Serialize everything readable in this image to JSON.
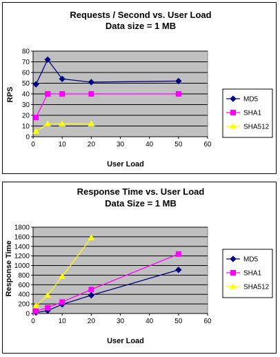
{
  "chart_data": [
    {
      "type": "line",
      "title": "Requests / Second  vs.  User Load",
      "subtitle": "Data size = 1 MB",
      "xlabel": "User Load",
      "ylabel": "RPS",
      "xlim": [
        0,
        60
      ],
      "ylim": [
        0,
        80
      ],
      "xticks": [
        0,
        10,
        20,
        30,
        40,
        50,
        60
      ],
      "yticks": [
        0,
        10,
        20,
        30,
        40,
        50,
        60,
        70,
        80
      ],
      "grid": true,
      "legend_position": "right",
      "plot_background": "#c0c0c0",
      "series": [
        {
          "name": "MD5",
          "color": "#000080",
          "marker": "diamond",
          "x": [
            1,
            5,
            10,
            20,
            50
          ],
          "y": [
            49,
            72,
            54,
            51,
            52
          ]
        },
        {
          "name": "SHA1",
          "color": "#ff00ff",
          "marker": "square",
          "x": [
            1,
            5,
            10,
            20,
            50
          ],
          "y": [
            18,
            40,
            40,
            40,
            40
          ]
        },
        {
          "name": "SHA512",
          "color": "#ffff00",
          "marker": "triangle",
          "x": [
            1,
            5,
            10,
            20
          ],
          "y": [
            5,
            12,
            12,
            12
          ]
        }
      ]
    },
    {
      "type": "line",
      "title": "Response Time  vs.  User Load",
      "subtitle": "Data Size = 1 MB",
      "xlabel": "User Load",
      "ylabel": "Response Time",
      "xlim": [
        0,
        60
      ],
      "ylim": [
        0,
        1800
      ],
      "xticks": [
        0,
        10,
        20,
        30,
        40,
        50,
        60
      ],
      "yticks": [
        0,
        200,
        400,
        600,
        800,
        1000,
        1200,
        1400,
        1600,
        1800
      ],
      "grid": true,
      "legend_position": "right",
      "plot_background": "#c0c0c0",
      "series": [
        {
          "name": "MD5",
          "color": "#000080",
          "marker": "diamond",
          "x": [
            1,
            5,
            10,
            20,
            50
          ],
          "y": [
            20,
            60,
            190,
            380,
            910
          ]
        },
        {
          "name": "SHA1",
          "color": "#ff00ff",
          "marker": "square",
          "x": [
            1,
            5,
            10,
            20,
            50
          ],
          "y": [
            50,
            120,
            240,
            500,
            1240
          ]
        },
        {
          "name": "SHA512",
          "color": "#ffff00",
          "marker": "triangle",
          "x": [
            1,
            5,
            10,
            20
          ],
          "y": [
            160,
            380,
            770,
            1580
          ]
        }
      ]
    }
  ]
}
